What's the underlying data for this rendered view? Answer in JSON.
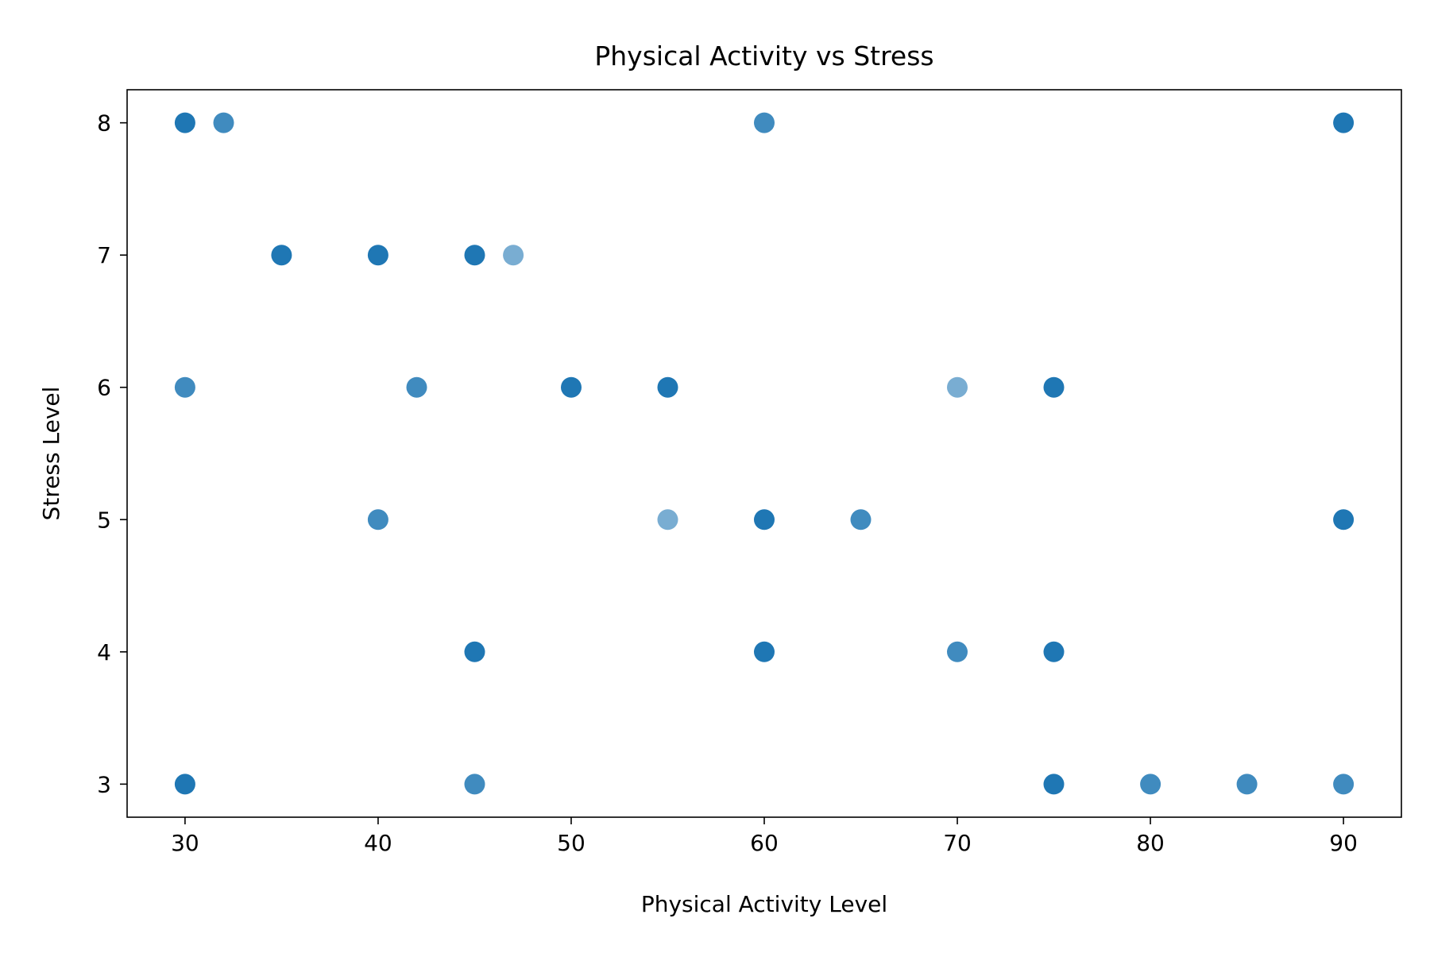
{
  "chart_data": {
    "type": "scatter",
    "title": "Physical Activity vs Stress",
    "xlabel": "Physical Activity Level",
    "ylabel": "Stress Level",
    "xlim": [
      27,
      93
    ],
    "ylim": [
      2.75,
      8.25
    ],
    "x_ticks": [
      30,
      40,
      50,
      60,
      70,
      80,
      90
    ],
    "y_ticks": [
      3,
      4,
      5,
      6,
      7,
      8
    ],
    "grid": false,
    "legend": "none",
    "marker_color": "#1f77b4",
    "points": [
      {
        "x": 30,
        "y": 8,
        "opacity": 1.0
      },
      {
        "x": 32,
        "y": 8,
        "opacity": 0.85
      },
      {
        "x": 60,
        "y": 8,
        "opacity": 0.85
      },
      {
        "x": 90,
        "y": 8,
        "opacity": 1.0
      },
      {
        "x": 35,
        "y": 7,
        "opacity": 1.0
      },
      {
        "x": 40,
        "y": 7,
        "opacity": 1.0
      },
      {
        "x": 45,
        "y": 7,
        "opacity": 1.0
      },
      {
        "x": 47,
        "y": 7,
        "opacity": 0.6
      },
      {
        "x": 30,
        "y": 6,
        "opacity": 0.85
      },
      {
        "x": 42,
        "y": 6,
        "opacity": 0.85
      },
      {
        "x": 50,
        "y": 6,
        "opacity": 1.0
      },
      {
        "x": 55,
        "y": 6,
        "opacity": 1.0
      },
      {
        "x": 70,
        "y": 6,
        "opacity": 0.6
      },
      {
        "x": 75,
        "y": 6,
        "opacity": 1.0
      },
      {
        "x": 40,
        "y": 5,
        "opacity": 0.85
      },
      {
        "x": 55,
        "y": 5,
        "opacity": 0.6
      },
      {
        "x": 60,
        "y": 5,
        "opacity": 1.0
      },
      {
        "x": 65,
        "y": 5,
        "opacity": 0.85
      },
      {
        "x": 90,
        "y": 5,
        "opacity": 1.0
      },
      {
        "x": 45,
        "y": 4,
        "opacity": 1.0
      },
      {
        "x": 60,
        "y": 4,
        "opacity": 1.0
      },
      {
        "x": 70,
        "y": 4,
        "opacity": 0.85
      },
      {
        "x": 75,
        "y": 4,
        "opacity": 1.0
      },
      {
        "x": 30,
        "y": 3,
        "opacity": 1.0
      },
      {
        "x": 45,
        "y": 3,
        "opacity": 0.85
      },
      {
        "x": 75,
        "y": 3,
        "opacity": 1.0
      },
      {
        "x": 80,
        "y": 3,
        "opacity": 0.85
      },
      {
        "x": 85,
        "y": 3,
        "opacity": 0.85
      },
      {
        "x": 90,
        "y": 3,
        "opacity": 0.85
      }
    ]
  }
}
